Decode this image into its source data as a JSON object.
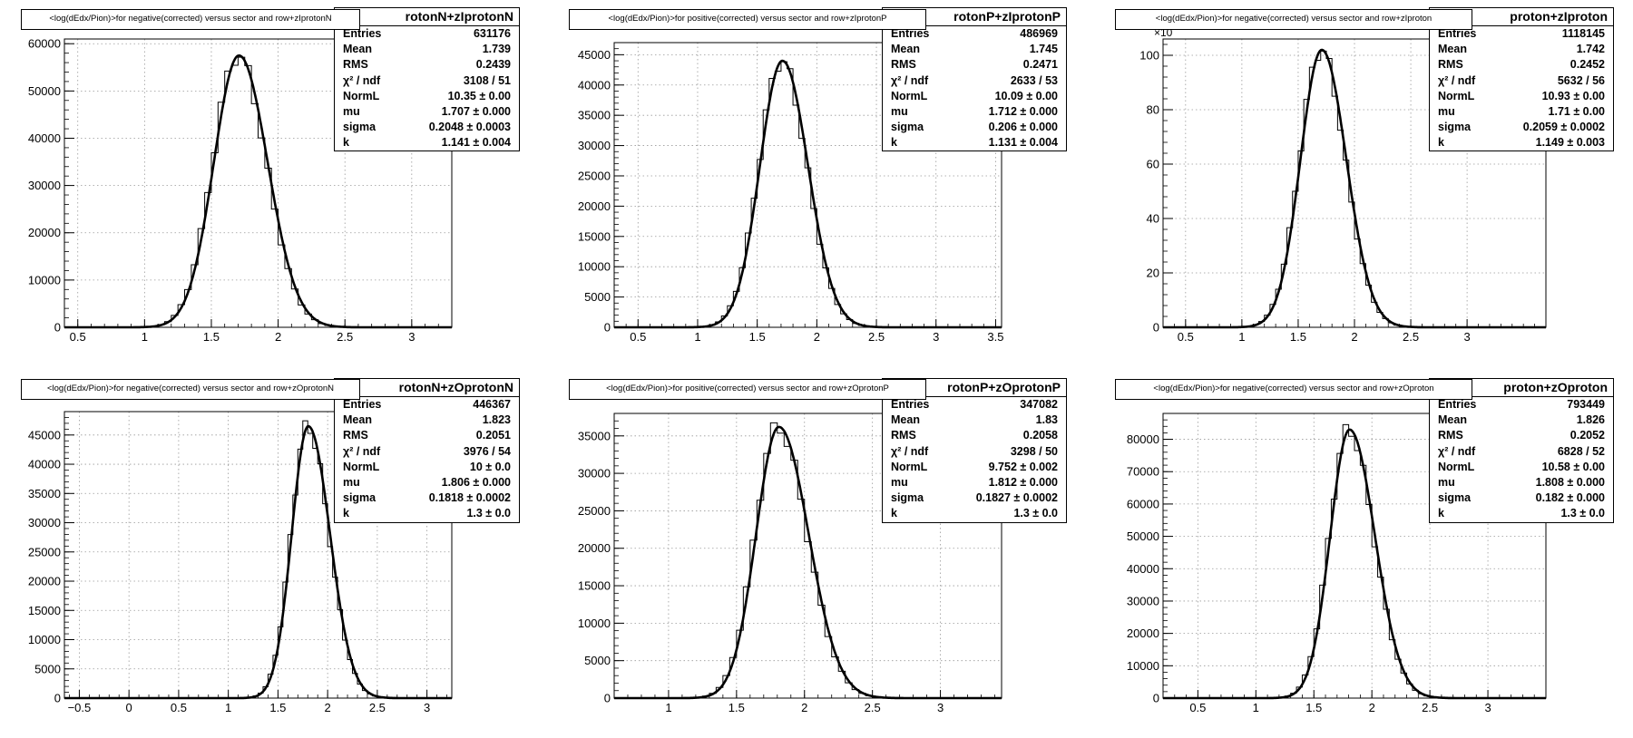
{
  "chart_data": [
    {
      "type": "histogram",
      "title": "<log(dEdx/Pion)>for negative(corrected) versus sector and row+zIprotonN",
      "stats_name": "rotonN+zIprotonN",
      "stats": [
        {
          "label": "Entries",
          "value": "631176"
        },
        {
          "label": "Mean",
          "value": "1.739"
        },
        {
          "label": "RMS",
          "value": "0.2439"
        },
        {
          "label": "χ² / ndf",
          "value": "3108 / 51"
        },
        {
          "label": "NormL",
          "value": "10.35 ± 0.00"
        },
        {
          "label": "mu",
          "value": "1.707 ± 0.000"
        },
        {
          "label": "sigma",
          "value": "0.2048 ± 0.0003"
        },
        {
          "label": "k",
          "value": "1.141 ± 0.004"
        }
      ],
      "xlim": [
        0.4,
        3.3
      ],
      "ylim": [
        0,
        61000
      ],
      "x_ticks": [
        0.5,
        1,
        1.5,
        2,
        2.5,
        3
      ],
      "x_tick_labels": [
        "0.5",
        "1",
        "1.5",
        "2",
        "2.5",
        "3"
      ],
      "y_ticks": [
        0,
        10000,
        20000,
        30000,
        40000,
        50000,
        60000
      ],
      "y_tick_labels": [
        "0",
        "10000",
        "20000",
        "30000",
        "40000",
        "50000",
        "60000"
      ],
      "fit": {
        "peak_x": 1.707,
        "peak_y": 57500,
        "sigma": 0.2048,
        "k": 1.141
      }
    },
    {
      "type": "histogram",
      "title": "<log(dEdx/Pion)>for positive(corrected) versus sector and row+zIprotonP",
      "stats_name": "rotonP+zIprotonP",
      "stats": [
        {
          "label": "Entries",
          "value": "486969"
        },
        {
          "label": "Mean",
          "value": "1.745"
        },
        {
          "label": "RMS",
          "value": "0.2471"
        },
        {
          "label": "χ² / ndf",
          "value": "2633 / 53"
        },
        {
          "label": "NormL",
          "value": "10.09 ± 0.00"
        },
        {
          "label": "mu",
          "value": "1.712 ± 0.000"
        },
        {
          "label": "sigma",
          "value": "0.206 ± 0.000"
        },
        {
          "label": "k",
          "value": "1.131 ± 0.004"
        }
      ],
      "xlim": [
        0.3,
        3.55
      ],
      "ylim": [
        0,
        47000
      ],
      "x_ticks": [
        0.5,
        1,
        1.5,
        2,
        2.5,
        3,
        3.5
      ],
      "x_tick_labels": [
        "0.5",
        "1",
        "1.5",
        "2",
        "2.5",
        "3",
        "3.5"
      ],
      "y_ticks": [
        0,
        5000,
        10000,
        15000,
        20000,
        25000,
        30000,
        35000,
        40000,
        45000
      ],
      "y_tick_labels": [
        "0",
        "5000",
        "10000",
        "15000",
        "20000",
        "25000",
        "30000",
        "35000",
        "40000",
        "45000"
      ],
      "fit": {
        "peak_x": 1.712,
        "peak_y": 44000,
        "sigma": 0.206,
        "k": 1.131
      }
    },
    {
      "type": "histogram",
      "title": "<log(dEdx/Pion)>for negative(corrected) versus sector and row+zIproton",
      "stats_name": "proton+zIproton",
      "stats": [
        {
          "label": "Entries",
          "value": "1118145"
        },
        {
          "label": "Mean",
          "value": "1.742"
        },
        {
          "label": "RMS",
          "value": "0.2452"
        },
        {
          "label": "χ² / ndf",
          "value": "5632 / 56"
        },
        {
          "label": "NormL",
          "value": "10.93 ± 0.00"
        },
        {
          "label": "mu",
          "value": "1.71 ± 0.00"
        },
        {
          "label": "sigma",
          "value": "0.2059 ± 0.0002"
        },
        {
          "label": "k",
          "value": "1.149 ± 0.003"
        }
      ],
      "exponent_label": "×10",
      "xlim": [
        0.3,
        3.7
      ],
      "ylim": [
        0,
        106
      ],
      "x_ticks": [
        0.5,
        1,
        1.5,
        2,
        2.5,
        3
      ],
      "x_tick_labels": [
        "0.5",
        "1",
        "1.5",
        "2",
        "2.5",
        "3"
      ],
      "y_ticks": [
        0,
        20,
        40,
        60,
        80,
        100
      ],
      "y_tick_labels": [
        "0",
        "20",
        "40",
        "60",
        "80",
        "100"
      ],
      "fit": {
        "peak_x": 1.71,
        "peak_y": 102,
        "sigma": 0.2059,
        "k": 1.149
      }
    },
    {
      "type": "histogram",
      "title": "<log(dEdx/Pion)>for negative(corrected) versus sector and row+zOprotonN",
      "stats_name": "rotonN+zOprotonN",
      "stats": [
        {
          "label": "Entries",
          "value": "446367"
        },
        {
          "label": "Mean",
          "value": "1.823"
        },
        {
          "label": "RMS",
          "value": "0.2051"
        },
        {
          "label": "χ² / ndf",
          "value": "3976 / 54"
        },
        {
          "label": "NormL",
          "value": "10 ± 0.0"
        },
        {
          "label": "mu",
          "value": "1.806 ± 0.000"
        },
        {
          "label": "sigma",
          "value": "0.1818 ± 0.0002"
        },
        {
          "label": "k",
          "value": "1.3 ± 0.0"
        }
      ],
      "xlim": [
        -0.65,
        3.25
      ],
      "ylim": [
        0,
        49000
      ],
      "x_ticks": [
        -0.5,
        0,
        0.5,
        1,
        1.5,
        2,
        2.5,
        3
      ],
      "x_tick_labels": [
        "−0.5",
        "0",
        "0.5",
        "1",
        "1.5",
        "2",
        "2.5",
        "3"
      ],
      "y_ticks": [
        0,
        5000,
        10000,
        15000,
        20000,
        25000,
        30000,
        35000,
        40000,
        45000
      ],
      "y_tick_labels": [
        "0",
        "5000",
        "10000",
        "15000",
        "20000",
        "25000",
        "30000",
        "35000",
        "40000",
        "45000"
      ],
      "fit": {
        "peak_x": 1.806,
        "peak_y": 46500,
        "sigma": 0.1818,
        "k": 1.3
      }
    },
    {
      "type": "histogram",
      "title": "<log(dEdx/Pion)>for positive(corrected) versus sector and row+zOprotonP",
      "stats_name": "rotonP+zOprotonP",
      "stats": [
        {
          "label": "Entries",
          "value": "347082"
        },
        {
          "label": "Mean",
          "value": "1.83"
        },
        {
          "label": "RMS",
          "value": "0.2058"
        },
        {
          "label": "χ² / ndf",
          "value": "3298 / 50"
        },
        {
          "label": "NormL",
          "value": "9.752 ± 0.002"
        },
        {
          "label": "mu",
          "value": "1.812 ± 0.000"
        },
        {
          "label": "sigma",
          "value": "0.1827 ± 0.0002"
        },
        {
          "label": "k",
          "value": "1.3 ± 0.0"
        }
      ],
      "xlim": [
        0.6,
        3.45
      ],
      "ylim": [
        0,
        38000
      ],
      "x_ticks": [
        1,
        1.5,
        2,
        2.5,
        3
      ],
      "x_tick_labels": [
        "1",
        "1.5",
        "2",
        "2.5",
        "3"
      ],
      "y_ticks": [
        0,
        5000,
        10000,
        15000,
        20000,
        25000,
        30000,
        35000
      ],
      "y_tick_labels": [
        "0",
        "5000",
        "10000",
        "15000",
        "20000",
        "25000",
        "30000",
        "35000"
      ],
      "fit": {
        "peak_x": 1.812,
        "peak_y": 36200,
        "sigma": 0.1827,
        "k": 1.3
      }
    },
    {
      "type": "histogram",
      "title": "<log(dEdx/Pion)>for negative(corrected) versus sector and row+zOproton",
      "stats_name": "proton+zOproton",
      "stats": [
        {
          "label": "Entries",
          "value": "793449"
        },
        {
          "label": "Mean",
          "value": "1.826"
        },
        {
          "label": "RMS",
          "value": "0.2052"
        },
        {
          "label": "χ² / ndf",
          "value": "6828 / 52"
        },
        {
          "label": "NormL",
          "value": "10.58 ± 0.00"
        },
        {
          "label": "mu",
          "value": "1.808 ± 0.000"
        },
        {
          "label": "sigma",
          "value": "0.182 ± 0.000"
        },
        {
          "label": "k",
          "value": "1.3 ± 0.0"
        }
      ],
      "xlim": [
        0.2,
        3.5
      ],
      "ylim": [
        0,
        88000
      ],
      "x_ticks": [
        0.5,
        1,
        1.5,
        2,
        2.5,
        3
      ],
      "x_tick_labels": [
        "0.5",
        "1",
        "1.5",
        "2",
        "2.5",
        "3"
      ],
      "y_ticks": [
        0,
        10000,
        20000,
        30000,
        40000,
        50000,
        60000,
        70000,
        80000
      ],
      "y_tick_labels": [
        "0",
        "10000",
        "20000",
        "30000",
        "40000",
        "50000",
        "60000",
        "70000",
        "80000"
      ],
      "fit": {
        "peak_x": 1.808,
        "peak_y": 83000,
        "sigma": 0.182,
        "k": 1.3
      }
    }
  ]
}
